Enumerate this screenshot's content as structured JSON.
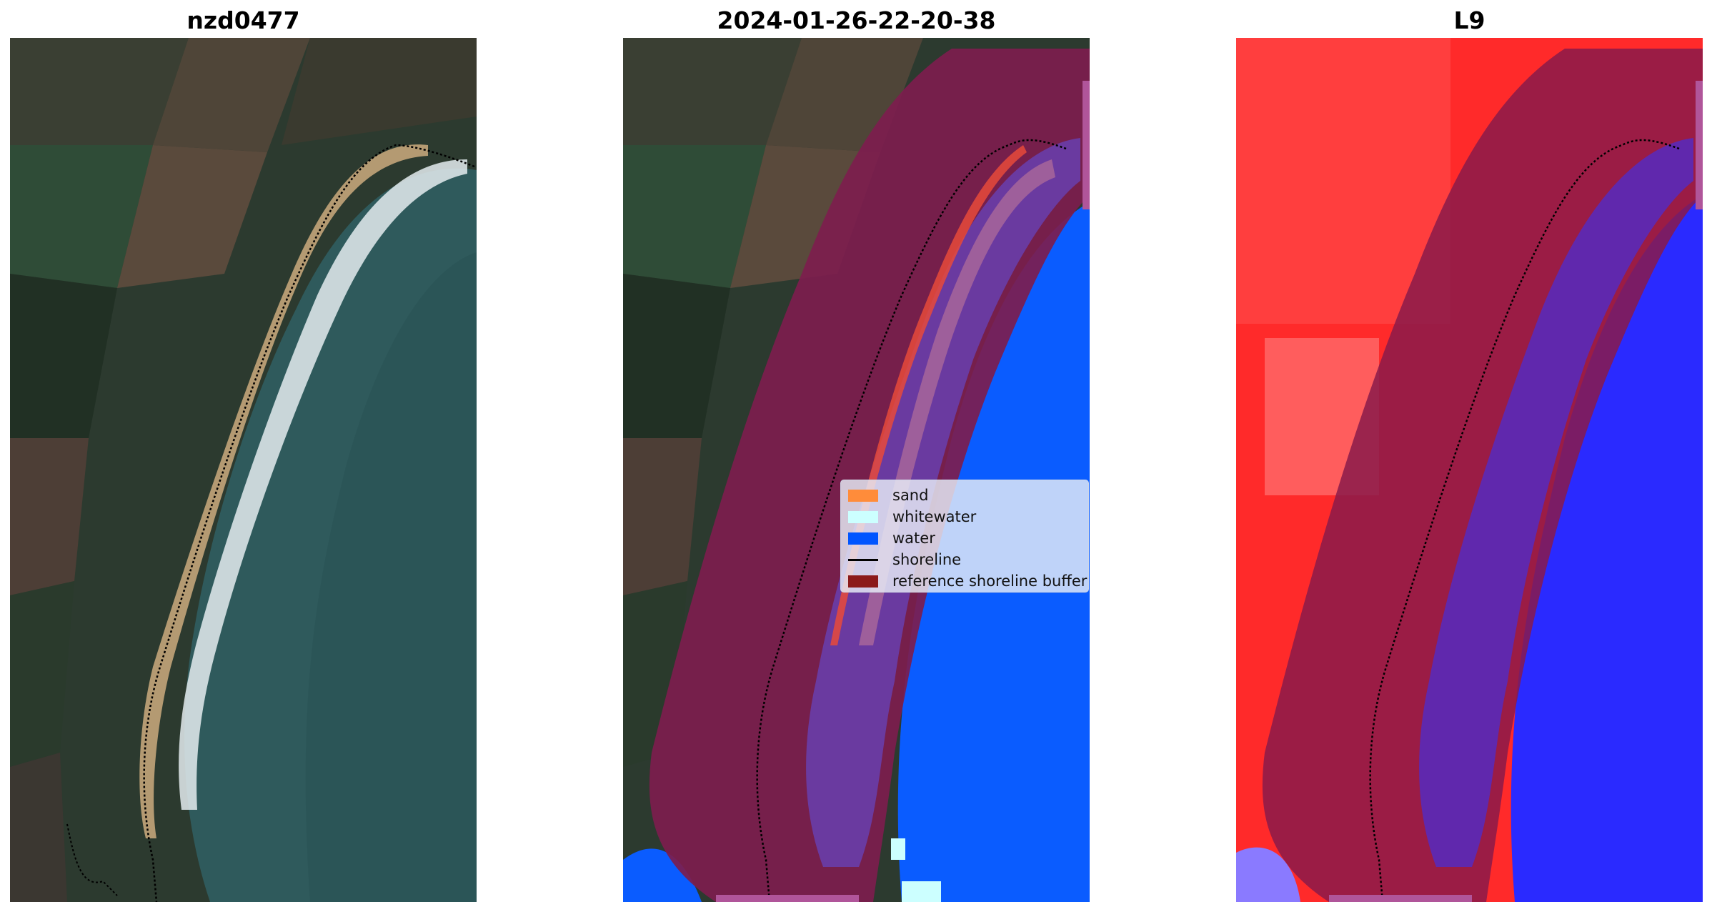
{
  "panels": [
    {
      "title": "nzd0477"
    },
    {
      "title": "2024-01-26-22-20-38"
    },
    {
      "title": "L9"
    }
  ],
  "legend": {
    "items": [
      {
        "label": "sand",
        "kind": "patch",
        "color": "#ff8c3a"
      },
      {
        "label": "whitewater",
        "kind": "patch",
        "color": "#ccffff"
      },
      {
        "label": "water",
        "kind": "patch",
        "color": "#0055ff"
      },
      {
        "label": "shoreline",
        "kind": "line",
        "color": "#000000"
      },
      {
        "label": "reference shoreline buffer",
        "kind": "patch",
        "color": "#8b1a1a"
      }
    ]
  },
  "colors": {
    "land_dark": "#2c3a2f",
    "field_green": "#2f4c37",
    "field_brown": "#5a4a3c",
    "sea": "#2f5a5c",
    "sand": "#b49a72",
    "surf": "#e4ecef",
    "water_class": "#0a5cff",
    "buffer": "#7d1d4e",
    "whitewater_class": "#6a3aa0",
    "index_red": "#ff2a2a",
    "index_blue": "#2a2aff"
  }
}
